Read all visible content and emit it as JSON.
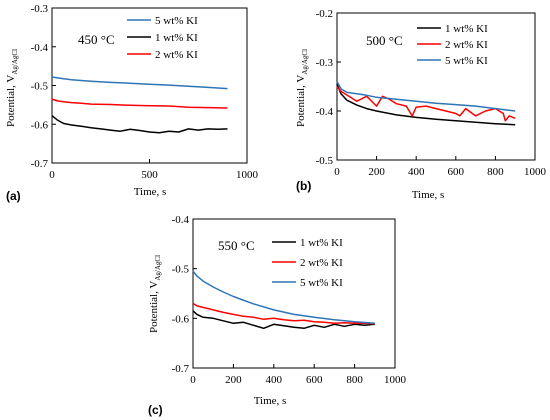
{
  "chart_data": [
    {
      "type": "line",
      "panel_label": "(a)",
      "annotation": "450 °C",
      "xlabel": "Time, s",
      "ylabel_main": "Potential, V",
      "ylabel_sub": "Ag/AgCl",
      "xlim": [
        0,
        1000
      ],
      "ylim": [
        -0.7,
        -0.3
      ],
      "xticks": [
        "0",
        "500",
        "1000"
      ],
      "yticks": [
        "-0.3",
        "-0.4",
        "-0.5",
        "-0.6",
        "-0.7"
      ],
      "legend_position": "top-right",
      "series": [
        {
          "name": "5 wt% KI",
          "color": "#2e75b6",
          "x": [
            0,
            50,
            100,
            200,
            300,
            400,
            500,
            600,
            700,
            800,
            900
          ],
          "y": [
            -0.478,
            -0.482,
            -0.485,
            -0.489,
            -0.492,
            -0.494,
            -0.497,
            -0.499,
            -0.502,
            -0.505,
            -0.508
          ]
        },
        {
          "name": "1 wt% KI",
          "color": "#000000",
          "x": [
            0,
            30,
            60,
            100,
            150,
            200,
            250,
            300,
            350,
            400,
            450,
            500,
            550,
            600,
            650,
            700,
            750,
            800,
            850,
            900
          ],
          "y": [
            -0.578,
            -0.59,
            -0.598,
            -0.602,
            -0.605,
            -0.609,
            -0.612,
            -0.615,
            -0.618,
            -0.613,
            -0.616,
            -0.62,
            -0.622,
            -0.618,
            -0.62,
            -0.612,
            -0.615,
            -0.612,
            -0.613,
            -0.612
          ]
        },
        {
          "name": "2 wt% KI",
          "color": "#ff0000",
          "x": [
            0,
            30,
            60,
            100,
            150,
            200,
            300,
            400,
            500,
            600,
            700,
            800,
            900
          ],
          "y": [
            -0.535,
            -0.54,
            -0.542,
            -0.544,
            -0.546,
            -0.548,
            -0.549,
            -0.551,
            -0.552,
            -0.553,
            -0.556,
            -0.557,
            -0.558
          ]
        }
      ]
    },
    {
      "type": "line",
      "panel_label": "(b)",
      "annotation": "500 °C",
      "xlabel": "Time, s",
      "ylabel_main": "Potential, V",
      "ylabel_sub": "Ag/AgCl",
      "xlim": [
        0,
        1000
      ],
      "ylim": [
        -0.5,
        -0.2
      ],
      "xticks": [
        "0",
        "200",
        "400",
        "600",
        "800",
        "1000"
      ],
      "yticks": [
        "-0.2",
        "-0.3",
        "-0.4",
        "-0.5"
      ],
      "legend_position": "top-right",
      "series": [
        {
          "name": "1 wt% KI",
          "color": "#000000",
          "x": [
            0,
            20,
            50,
            100,
            150,
            200,
            300,
            400,
            500,
            600,
            700,
            800,
            900
          ],
          "y": [
            -0.345,
            -0.365,
            -0.378,
            -0.388,
            -0.395,
            -0.4,
            -0.408,
            -0.413,
            -0.417,
            -0.42,
            -0.423,
            -0.426,
            -0.428
          ]
        },
        {
          "name": "2 wt% KI",
          "color": "#ff0000",
          "x": [
            0,
            20,
            60,
            100,
            150,
            200,
            230,
            260,
            300,
            350,
            380,
            400,
            450,
            500,
            550,
            600,
            620,
            650,
            700,
            750,
            800,
            840,
            850,
            870,
            900
          ],
          "y": [
            -0.35,
            -0.36,
            -0.37,
            -0.38,
            -0.37,
            -0.39,
            -0.37,
            -0.375,
            -0.385,
            -0.39,
            -0.41,
            -0.392,
            -0.39,
            -0.395,
            -0.4,
            -0.405,
            -0.41,
            -0.395,
            -0.41,
            -0.4,
            -0.395,
            -0.405,
            -0.42,
            -0.41,
            -0.415
          ]
        },
        {
          "name": "5 wt% KI",
          "color": "#2e75b6",
          "x": [
            0,
            20,
            50,
            100,
            150,
            200,
            300,
            400,
            500,
            600,
            700,
            800,
            900
          ],
          "y": [
            -0.34,
            -0.355,
            -0.362,
            -0.365,
            -0.368,
            -0.372,
            -0.376,
            -0.38,
            -0.384,
            -0.387,
            -0.39,
            -0.395,
            -0.4
          ]
        }
      ]
    },
    {
      "type": "line",
      "panel_label": "(c)",
      "annotation": "550 °C",
      "xlabel": "Time, s",
      "ylabel_main": "Potential, V",
      "ylabel_sub": "Ag/AgCl",
      "xlim": [
        0,
        1000
      ],
      "ylim": [
        -0.7,
        -0.4
      ],
      "xticks": [
        "0",
        "200",
        "400",
        "600",
        "800",
        "1000"
      ],
      "yticks": [
        "-0.4",
        "-0.5",
        "-0.6",
        "-0.7"
      ],
      "legend_position": "top-right",
      "series": [
        {
          "name": "1 wt% KI",
          "color": "#000000",
          "x": [
            0,
            20,
            50,
            100,
            150,
            200,
            250,
            300,
            350,
            400,
            450,
            500,
            550,
            600,
            650,
            700,
            750,
            800,
            850,
            900
          ],
          "y": [
            -0.585,
            -0.592,
            -0.598,
            -0.6,
            -0.605,
            -0.61,
            -0.608,
            -0.614,
            -0.62,
            -0.612,
            -0.615,
            -0.618,
            -0.62,
            -0.614,
            -0.618,
            -0.612,
            -0.616,
            -0.612,
            -0.614,
            -0.612
          ]
        },
        {
          "name": "2 wt% KI",
          "color": "#ff0000",
          "x": [
            0,
            20,
            50,
            100,
            150,
            200,
            250,
            300,
            350,
            400,
            450,
            500,
            550,
            600,
            650,
            700,
            750,
            800,
            850,
            900
          ],
          "y": [
            -0.57,
            -0.575,
            -0.578,
            -0.583,
            -0.588,
            -0.592,
            -0.596,
            -0.598,
            -0.602,
            -0.6,
            -0.603,
            -0.605,
            -0.604,
            -0.607,
            -0.608,
            -0.61,
            -0.609,
            -0.61,
            -0.61,
            -0.611
          ]
        },
        {
          "name": "5 wt% KI",
          "color": "#2e75b6",
          "x": [
            0,
            20,
            50,
            100,
            150,
            200,
            300,
            400,
            500,
            600,
            700,
            800,
            900
          ],
          "y": [
            -0.505,
            -0.515,
            -0.525,
            -0.537,
            -0.547,
            -0.556,
            -0.571,
            -0.583,
            -0.592,
            -0.598,
            -0.603,
            -0.607,
            -0.61
          ]
        }
      ]
    }
  ]
}
